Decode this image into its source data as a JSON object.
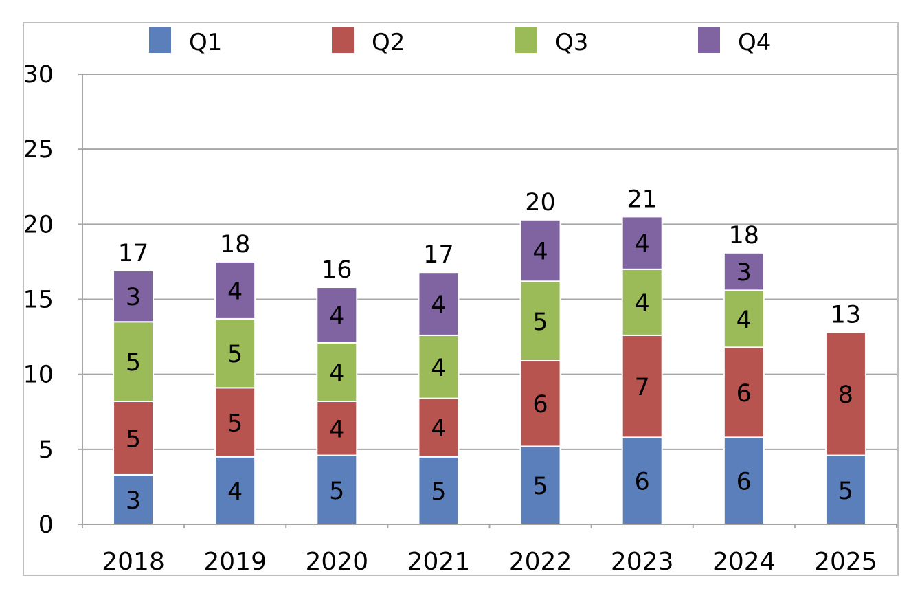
{
  "chart_data": {
    "type": "bar",
    "stacked": true,
    "categories": [
      "2018",
      "2019",
      "2020",
      "2021",
      "2022",
      "2023",
      "2024",
      "2025"
    ],
    "series": [
      {
        "name": "Q1",
        "color": "#5b7fbb",
        "values": [
          3.3,
          4.5,
          4.6,
          4.5,
          5.2,
          5.8,
          5.8,
          4.6
        ],
        "labels": [
          "3",
          "4",
          "5",
          "5",
          "5",
          "6",
          "6",
          "5"
        ]
      },
      {
        "name": "Q2",
        "color": "#b85450",
        "values": [
          4.9,
          4.6,
          3.6,
          3.9,
          5.7,
          6.8,
          6.0,
          8.2
        ],
        "labels": [
          "5",
          "5",
          "4",
          "4",
          "6",
          "7",
          "6",
          "8"
        ]
      },
      {
        "name": "Q3",
        "color": "#9bbb59",
        "values": [
          5.3,
          4.6,
          3.9,
          4.2,
          5.3,
          4.4,
          3.8,
          0
        ],
        "labels": [
          "5",
          "5",
          "4",
          "4",
          "5",
          "4",
          "4",
          ""
        ]
      },
      {
        "name": "Q4",
        "color": "#8064a2",
        "values": [
          3.4,
          3.8,
          3.7,
          4.2,
          4.1,
          3.5,
          2.5,
          0
        ],
        "labels": [
          "3",
          "4",
          "4",
          "4",
          "4",
          "4",
          "3",
          ""
        ]
      }
    ],
    "totals": [
      "17",
      "18",
      "16",
      "17",
      "20",
      "21",
      "18",
      "13"
    ],
    "yticks": [
      "0",
      "5",
      "10",
      "15",
      "20",
      "25",
      "30"
    ],
    "ylim": [
      0,
      30
    ],
    "grid": true,
    "legend_position": "top",
    "title": "",
    "xlabel": "",
    "ylabel": ""
  }
}
